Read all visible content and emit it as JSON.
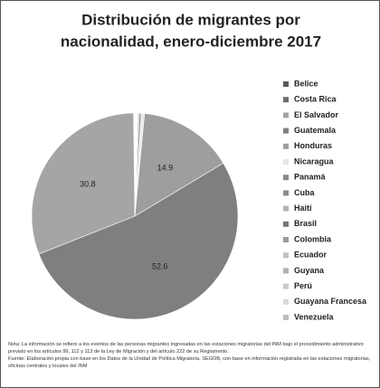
{
  "chart_data": {
    "type": "pie",
    "title": [
      "Distribución de migrantes por",
      "nacionalidad, enero-diciembre 2017"
    ],
    "categories": [
      "Belice",
      "Costa Rica",
      "El Salvador",
      "Guatemala",
      "Honduras",
      "Nicaragua",
      "Panamá",
      "Cuba",
      "Haití",
      "Brasil",
      "Colombia",
      "Ecuador",
      "Guyana",
      "Perú",
      "Guayana Francesa",
      "Venezuela"
    ],
    "values": [
      0.1,
      0.1,
      30.8,
      52.6,
      14.9,
      0.4,
      0.1,
      0.3,
      0.2,
      0.1,
      0.1,
      0.1,
      0.05,
      0.05,
      0.05,
      0.05
    ],
    "value_labels": [
      null,
      null,
      "30.8",
      "52.6",
      "14.9",
      null,
      null,
      null,
      null,
      null,
      null,
      null,
      null,
      null,
      null,
      null
    ],
    "colors": [
      "#5a5a5a",
      "#6e6e6e",
      "#a5a5a5",
      "#7f7f7f",
      "#9e9e9e",
      "#e6e6e6",
      "#888888",
      "#8c8c8c",
      "#b3b3b3",
      "#777777",
      "#999999",
      "#c0c0c0",
      "#b0b0b0",
      "#cacaca",
      "#d8d8d8",
      "#bdbdbd"
    ],
    "legend": "right",
    "note": "Nota: La información se refiere a los eventos de las personas migrantes ingresadas en las estaciones migratorias del INM bajo el procedimiento administrativo previsto en los artículos 99, 112 y 113 de la Ley de Migración y del artículo 222 de su Reglamento.",
    "source": "Fuente: Elaboración propia con base en los Datos de la Unidad de Política Migratoria, SEGOB, con base en información registrada en las estaciones migratorias, oficinas centrales y locales del INM"
  }
}
